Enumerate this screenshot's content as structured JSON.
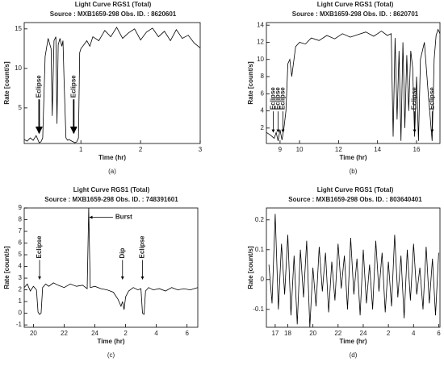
{
  "chart_data": [
    {
      "type": "line",
      "title": "Light Curve RGS1 (Total)",
      "subtitle": "Source : MXB1659-298 Obs. ID. : 8620601",
      "x_label": "Time (hr)",
      "y_label": "Rate [count/s]",
      "panel_label": "(a)",
      "color": "#000000",
      "x": [
        0.05,
        0.1,
        0.15,
        0.2,
        0.25,
        0.3,
        0.33,
        0.36,
        0.4,
        0.45,
        0.5,
        0.52,
        0.55,
        0.58,
        0.6,
        0.62,
        0.65,
        0.68,
        0.7,
        0.72,
        0.75,
        0.78,
        0.8,
        0.85,
        0.9,
        0.93,
        0.96,
        0.98,
        1.0,
        1.05,
        1.1,
        1.15,
        1.2,
        1.3,
        1.4,
        1.5,
        1.6,
        1.7,
        1.8,
        1.9,
        2.0,
        2.1,
        2.2,
        2.3,
        2.4,
        2.5,
        2.6,
        2.7,
        2.8,
        2.9,
        3.0
      ],
      "values": [
        1.0,
        0.8,
        1.2,
        0.9,
        1.5,
        0.6,
        0.7,
        1.2,
        11.5,
        13.8,
        12.5,
        4,
        13.5,
        14,
        3,
        13,
        13.8,
        12.8,
        13.5,
        8,
        1.2,
        0.9,
        1.0,
        0.8,
        0.6,
        0.7,
        1.2,
        12,
        12.5,
        13,
        13.5,
        12.8,
        14,
        13.5,
        14.8,
        14,
        15.2,
        13.8,
        14.5,
        15,
        13.6,
        14.6,
        15.1,
        14,
        14.7,
        13.5,
        14.9,
        13.8,
        14.2,
        13.2,
        12.6
      ],
      "xlim": [
        0.05,
        3.0
      ],
      "xticks": [
        1,
        2,
        3
      ],
      "ylim": [
        0.5,
        15.8
      ],
      "yticks": [
        5,
        10,
        15
      ],
      "annotations": [
        {
          "text": "Eclipse",
          "x": 0.3,
          "y": 1.8
        },
        {
          "text": "Eclipse",
          "x": 0.88,
          "y": 1.8
        }
      ]
    },
    {
      "type": "line",
      "title": "Light Curve RGS1 (Total)",
      "subtitle": "Source : MXB1659-298 Obs. ID. : 8620701",
      "x_label": "Time (hr)",
      "y_label": "Rate [count/s]",
      "panel_label": "(b)",
      "color": "#000000",
      "x": [
        8.3,
        8.5,
        8.7,
        8.8,
        8.9,
        9.0,
        9.1,
        9.2,
        9.3,
        9.4,
        9.5,
        9.6,
        9.8,
        10,
        10.3,
        10.6,
        11,
        11.4,
        11.8,
        12.2,
        12.6,
        13,
        13.4,
        13.8,
        14.2,
        14.5,
        14.7,
        14.8,
        14.9,
        15.0,
        15.1,
        15.2,
        15.3,
        15.4,
        15.5,
        15.6,
        15.7,
        15.8,
        15.9,
        16.0,
        16.1,
        16.2,
        16.4,
        16.6,
        16.8,
        16.9,
        17.0,
        17.1,
        17.2
      ],
      "values": [
        1.5,
        1.2,
        0.8,
        1.5,
        0.5,
        1.8,
        0.6,
        2,
        4,
        9.5,
        10,
        8,
        11.5,
        12,
        11.8,
        12.5,
        12.2,
        12.8,
        12.4,
        13,
        12.6,
        12.9,
        13.2,
        12.7,
        13.3,
        12.8,
        13,
        1,
        12.5,
        3,
        11,
        0.5,
        12,
        2,
        10.5,
        4,
        11,
        9,
        1,
        8,
        0.5,
        10,
        12,
        6,
        0.5,
        10,
        12.8,
        13.5,
        13
      ],
      "xlim": [
        8.3,
        17.2
      ],
      "xticks": [
        9,
        10,
        12,
        14,
        16
      ],
      "ylim": [
        0.2,
        14.3
      ],
      "yticks": [
        2,
        4,
        6,
        8,
        10,
        12,
        14
      ],
      "annotations": [
        {
          "text": "Eclipse",
          "x": 8.65,
          "y": 1.5
        },
        {
          "text": "Eclipse",
          "x": 8.9,
          "y": 1.5
        },
        {
          "text": "Eclipse",
          "x": 9.15,
          "y": 1.5
        },
        {
          "text": "Eclipse",
          "x": 15.9,
          "y": 1.5
        },
        {
          "text": "Eclipse",
          "x": 16.8,
          "y": 1.5
        }
      ]
    },
    {
      "type": "line",
      "title": "Light Curve RGS1 (Total)",
      "subtitle": "Source : MXB1659-298 Obs. ID. : 748391601",
      "x_label": "Time (hr)",
      "y_label": "Rate [count/s]",
      "panel_label": "(c)",
      "color": "#000000",
      "x": [
        19.4,
        19.6,
        19.8,
        20.0,
        20.2,
        20.3,
        20.4,
        20.5,
        20.6,
        20.8,
        21,
        21.3,
        21.6,
        22,
        22.4,
        22.8,
        23.2,
        23.5,
        23.6,
        23.7,
        24,
        24.4,
        24.8,
        25.2,
        25.5,
        25.7,
        25.8,
        25.9,
        26.0,
        26.2,
        26.5,
        26.8,
        27.0,
        27.1,
        27.2,
        27.3,
        27.5,
        27.8,
        28.2,
        28.6,
        29,
        29.4,
        29.8,
        30.2,
        30.7
      ],
      "values": [
        2.2,
        2.5,
        1.9,
        2.3,
        2.0,
        0.1,
        -0.1,
        0.0,
        2.2,
        2.5,
        2.3,
        2.6,
        2.4,
        2.2,
        2.5,
        2.3,
        2.4,
        2.1,
        9.0,
        2.2,
        2.3,
        2.1,
        2.0,
        1.8,
        1.2,
        0.6,
        1.0,
        0.3,
        1.4,
        1.9,
        2.2,
        2.0,
        2.1,
        0.0,
        -0.1,
        1.9,
        2.2,
        2.0,
        2.1,
        1.9,
        2.2,
        2.0,
        2.1,
        2.0,
        2.2
      ],
      "xlim": [
        19.4,
        30.7
      ],
      "xticks": [
        20,
        22,
        24,
        {
          "value": 26,
          "label": "2"
        },
        {
          "value": 28,
          "label": "4"
        },
        {
          "value": 30,
          "label": "6"
        }
      ],
      "ylim": [
        -1.2,
        9.0
      ],
      "yticks": [
        -1,
        0,
        1,
        2,
        3,
        4,
        5,
        6,
        7,
        8,
        9
      ],
      "annotations": [
        {
          "text": "Eclipse",
          "x": 20.4,
          "y": 2.9
        },
        {
          "text": "Burst",
          "x": 23.6,
          "y": 8.2,
          "orientation": "horizontal"
        },
        {
          "text": "Dip",
          "x": 25.8,
          "y": 2.9
        },
        {
          "text": "Eclipse",
          "x": 27.1,
          "y": 2.9
        }
      ]
    },
    {
      "type": "line",
      "title": "Light Curve RGS1 (Total)",
      "subtitle": "Source : MXB1659-298 Obs. ID. : 803640401",
      "x_label": "Time (hr)",
      "y_label": "Rate [count/s]",
      "panel_label": "(d)",
      "color": "#000000",
      "x": [
        16.5,
        16.75,
        17,
        17.25,
        17.5,
        17.75,
        18,
        18.25,
        18.5,
        18.75,
        19,
        19.25,
        19.5,
        19.75,
        20,
        20.25,
        20.5,
        20.75,
        21,
        21.25,
        21.5,
        21.75,
        22,
        22.25,
        22.5,
        22.75,
        23,
        23.25,
        23.5,
        23.75,
        24,
        24.25,
        24.5,
        24.75,
        25,
        25.25,
        25.5,
        25.75,
        26,
        26.25,
        26.5,
        26.75,
        27,
        27.25,
        27.5,
        27.75,
        28,
        28.25,
        28.5,
        28.75,
        29,
        29.25,
        29.5,
        29.75,
        30
      ],
      "values": [
        0.05,
        -0.08,
        0.22,
        -0.1,
        0.12,
        -0.05,
        0.15,
        -0.12,
        0.08,
        -0.15,
        0.1,
        -0.06,
        0.13,
        -0.16,
        0.04,
        -0.09,
        0.11,
        -0.04,
        0.09,
        -0.11,
        0.06,
        -0.07,
        0.12,
        -0.03,
        0.08,
        -0.1,
        0.14,
        -0.05,
        0.07,
        -0.12,
        0.1,
        -0.08,
        0.05,
        -0.1,
        0.13,
        -0.04,
        0.09,
        -0.11,
        0.06,
        -0.09,
        0.15,
        -0.06,
        0.08,
        -0.13,
        0.1,
        -0.07,
        0.12,
        -0.05,
        0.04,
        -0.1,
        0.11,
        -0.08,
        0.07,
        -0.12,
        0.09
      ],
      "xlim": [
        16.3,
        30.1
      ],
      "xticks": [
        17,
        18,
        20,
        22,
        24,
        {
          "value": 26,
          "label": "2"
        },
        {
          "value": 28,
          "label": "4"
        },
        {
          "value": 30,
          "label": "6"
        }
      ],
      "ylim": [
        -0.16,
        0.24
      ],
      "yticks": [
        -0.1,
        0,
        0.1,
        0.2
      ]
    }
  ]
}
